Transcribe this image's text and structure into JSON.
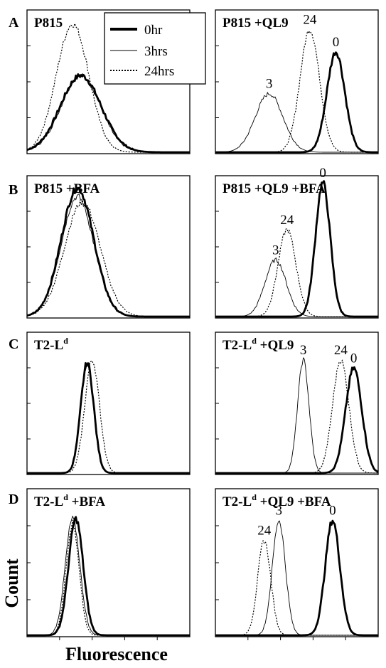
{
  "figure": {
    "y_axis_label": "Count",
    "x_axis_label": "Fluorescence",
    "legend": [
      {
        "label": "0hr",
        "style": "thick"
      },
      {
        "label": "3hrs",
        "style": "thin"
      },
      {
        "label": "24hrs",
        "style": "dotted"
      }
    ]
  },
  "rows": [
    {
      "letter": "A"
    },
    {
      "letter": "B"
    },
    {
      "letter": "C"
    },
    {
      "letter": "D"
    }
  ],
  "chart_data": [
    {
      "type": "area",
      "panel": "A-left",
      "title": "P815",
      "title_sup": "",
      "title_suffix": "",
      "series": [
        {
          "name": "0hr",
          "center": 0.33,
          "width": 0.125,
          "height": 0.55
        },
        {
          "name": "3hrs",
          "center": 0.33,
          "width": 0.12,
          "height": 0.55
        },
        {
          "name": "24hrs",
          "center": 0.28,
          "width": 0.1,
          "height": 0.92
        }
      ],
      "peak_labels": []
    },
    {
      "type": "area",
      "panel": "A-right",
      "title": "P815 +QL9",
      "title_sup": "",
      "title_suffix": "",
      "series": [
        {
          "name": "3hrs",
          "center": 0.33,
          "width": 0.085,
          "height": 0.42
        },
        {
          "name": "24hrs",
          "center": 0.58,
          "width": 0.06,
          "height": 0.88
        },
        {
          "name": "0hr",
          "center": 0.74,
          "width": 0.055,
          "height": 0.72
        }
      ],
      "peak_labels": [
        "3",
        "24",
        "0"
      ]
    },
    {
      "type": "area",
      "panel": "B-left",
      "title": "P815 +BFA",
      "title_sup": "",
      "title_suffix": "",
      "series": [
        {
          "name": "0hr",
          "center": 0.31,
          "width": 0.1,
          "height": 0.93
        },
        {
          "name": "3hrs",
          "center": 0.31,
          "width": 0.1,
          "height": 0.87
        },
        {
          "name": "24hrs",
          "center": 0.34,
          "width": 0.11,
          "height": 0.83
        }
      ],
      "peak_labels": []
    },
    {
      "type": "area",
      "panel": "B-right",
      "title": "P815 +QL9 +BFA",
      "title_sup": "",
      "title_suffix": "",
      "series": [
        {
          "name": "3hrs",
          "center": 0.37,
          "width": 0.065,
          "height": 0.41
        },
        {
          "name": "24hrs",
          "center": 0.44,
          "width": 0.055,
          "height": 0.63
        },
        {
          "name": "0hr",
          "center": 0.66,
          "width": 0.045,
          "height": 0.97
        }
      ],
      "peak_labels": [
        "3",
        "24",
        "0"
      ]
    },
    {
      "type": "area",
      "panel": "C-left",
      "title": "T2-L",
      "title_sup": "d",
      "title_suffix": "",
      "series": [
        {
          "name": "0hr",
          "center": 0.37,
          "width": 0.04,
          "height": 0.8
        },
        {
          "name": "3hrs",
          "center": 0.37,
          "width": 0.04,
          "height": 0.78
        },
        {
          "name": "24hrs",
          "center": 0.4,
          "width": 0.045,
          "height": 0.82
        }
      ],
      "peak_labels": []
    },
    {
      "type": "area",
      "panel": "C-right",
      "title": "T2-L",
      "title_sup": "d",
      "title_suffix": " +QL9",
      "series": [
        {
          "name": "3hrs",
          "center": 0.54,
          "width": 0.035,
          "height": 0.82
        },
        {
          "name": "24hrs",
          "center": 0.77,
          "width": 0.05,
          "height": 0.82
        },
        {
          "name": "0hr",
          "center": 0.85,
          "width": 0.05,
          "height": 0.76
        }
      ],
      "peak_labels": [
        "3",
        "24",
        "0"
      ]
    },
    {
      "type": "area",
      "panel": "D-left",
      "title": "T2-L",
      "title_sup": "d",
      "title_suffix": " +BFA",
      "series": [
        {
          "name": "0hr",
          "center": 0.3,
          "width": 0.045,
          "height": 0.81
        },
        {
          "name": "3hrs",
          "center": 0.28,
          "width": 0.045,
          "height": 0.81
        },
        {
          "name": "24hrs",
          "center": 0.28,
          "width": 0.04,
          "height": 0.78
        }
      ],
      "peak_labels": []
    },
    {
      "type": "area",
      "panel": "D-right",
      "title": "T2-L",
      "title_sup": "d",
      "title_suffix": " +QL9 +BFA",
      "series": [
        {
          "name": "24hrs",
          "center": 0.3,
          "width": 0.04,
          "height": 0.66
        },
        {
          "name": "3hrs",
          "center": 0.39,
          "width": 0.04,
          "height": 0.8
        },
        {
          "name": "0hr",
          "center": 0.72,
          "width": 0.045,
          "height": 0.8
        }
      ],
      "peak_labels": [
        "24",
        "3",
        "0"
      ]
    }
  ]
}
